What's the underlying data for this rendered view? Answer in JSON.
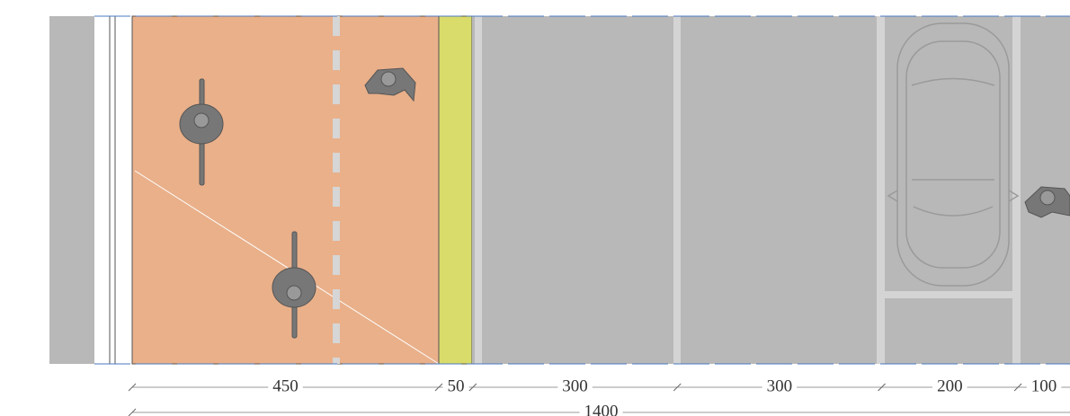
{
  "dimensions": [
    450,
    50,
    300,
    300,
    200,
    100
  ],
  "total": 1400
}
